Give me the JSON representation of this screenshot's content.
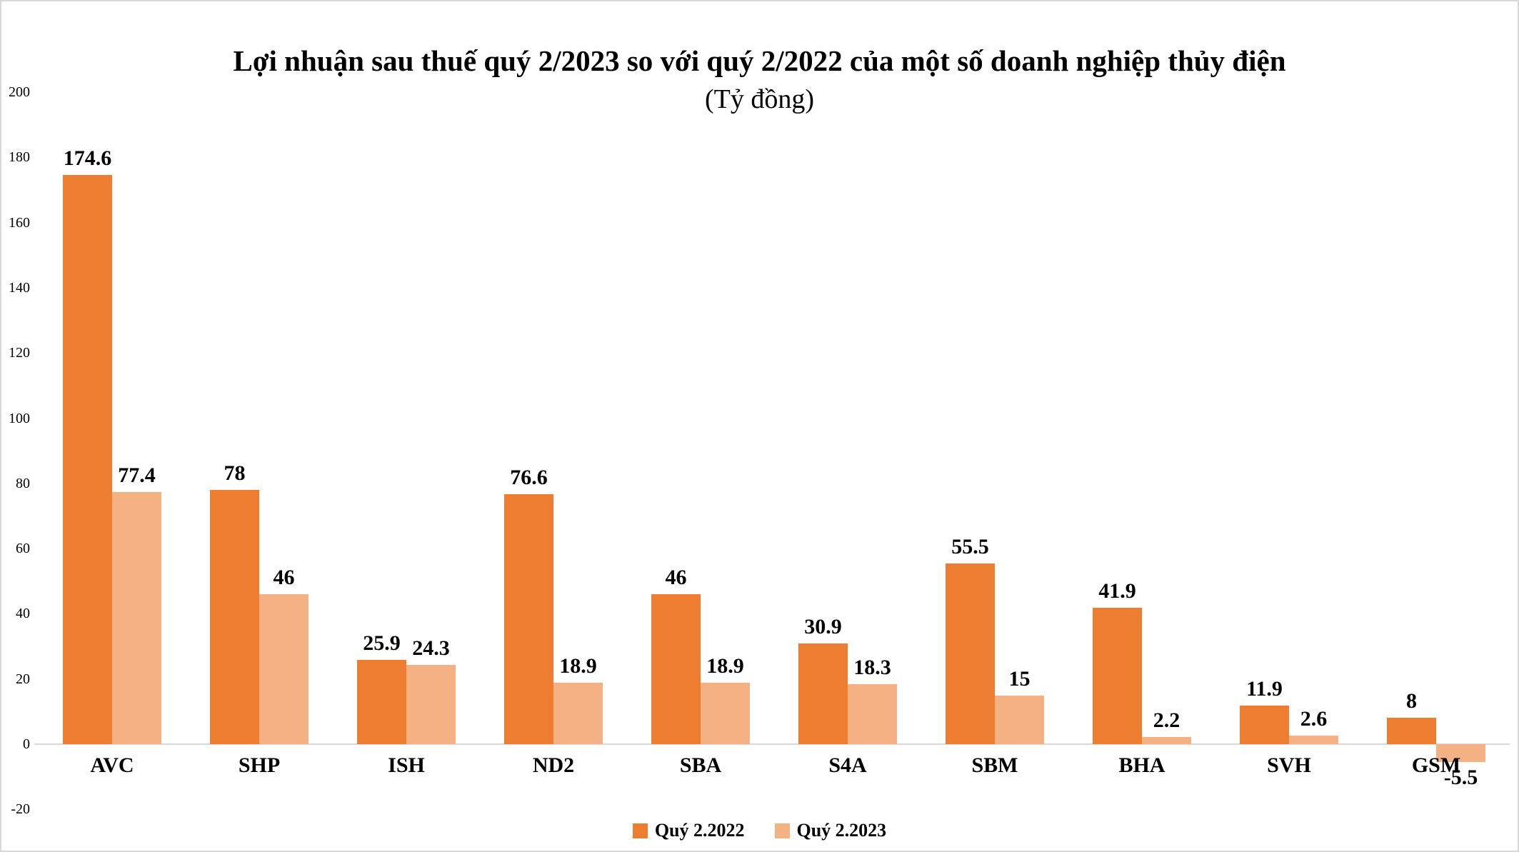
{
  "page": {
    "background": "#FFFFFF",
    "frame_color": "#D9D9D9"
  },
  "chart_data": {
    "type": "bar",
    "title": "Lợi nhuận sau thuế quý 2/2023 so với quý 2/2022 của một số doanh nghiệp thủy điện",
    "subtitle": "(Tỷ đồng)",
    "categories": [
      "AVC",
      "SHP",
      "ISH",
      "ND2",
      "SBA",
      "S4A",
      "SBM",
      "BHA",
      "SVH",
      "GSM"
    ],
    "series": [
      {
        "name": "Quý 2.2022",
        "color": "#ED7D31",
        "values": [
          174.6,
          78,
          25.9,
          76.6,
          46,
          30.9,
          55.5,
          41.9,
          11.9,
          8
        ]
      },
      {
        "name": "Quý 2.2023",
        "color": "#F4B183",
        "values": [
          77.4,
          46,
          24.3,
          18.9,
          18.9,
          18.3,
          15,
          2.2,
          2.6,
          -5.5
        ]
      }
    ],
    "ylim": [
      -20,
      200
    ],
    "ytick_step": 20,
    "yticks": [
      200,
      180,
      160,
      140,
      120,
      100,
      80,
      60,
      40,
      20,
      0,
      -20
    ],
    "grid": false,
    "legend_position": "bottom",
    "data_labels": true,
    "axis_color": "#D9D9D9",
    "text_color": "#000000"
  }
}
